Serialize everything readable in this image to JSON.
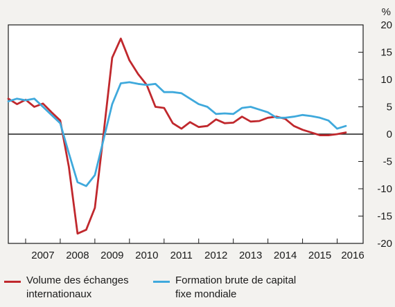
{
  "chart_data": {
    "type": "line",
    "title": "",
    "unit": "%",
    "xlabel": "",
    "ylabel": "",
    "x_range": [
      2006.5,
      2016.75
    ],
    "ylim": [
      -20,
      20
    ],
    "y_ticks": [
      -20,
      -15,
      -10,
      -5,
      0,
      5,
      10,
      15,
      20
    ],
    "y_axis_side": "right",
    "x_tick_labels": [
      "2007",
      "2008",
      "2009",
      "2010",
      "2011",
      "2012",
      "2013",
      "2014",
      "2015",
      "2016"
    ],
    "grid": false,
    "legend_position": "bottom",
    "zero_line": true,
    "series": [
      {
        "name": "Volume des échanges\ninternationaux",
        "color": "#c0282d",
        "x": [
          2006.5,
          2006.75,
          2007.0,
          2007.25,
          2007.5,
          2007.75,
          2008.0,
          2008.25,
          2008.5,
          2008.75,
          2009.0,
          2009.25,
          2009.5,
          2009.75,
          2010.0,
          2010.25,
          2010.5,
          2010.75,
          2011.0,
          2011.25,
          2011.5,
          2011.75,
          2012.0,
          2012.25,
          2012.5,
          2012.75,
          2013.0,
          2013.25,
          2013.5,
          2013.75,
          2014.0,
          2014.25,
          2014.5,
          2014.75,
          2015.0,
          2015.25,
          2015.5,
          2015.75,
          2016.0,
          2016.25
        ],
        "values": [
          6.5,
          5.5,
          6.3,
          5.0,
          5.6,
          4.0,
          2.5,
          -6.0,
          -18.2,
          -17.5,
          -13.5,
          0.0,
          14.0,
          17.5,
          13.5,
          11.0,
          9.0,
          5.0,
          4.8,
          2.0,
          1.0,
          2.2,
          1.3,
          1.5,
          2.7,
          2.0,
          2.1,
          3.2,
          2.3,
          2.4,
          3.0,
          3.2,
          2.8,
          1.5,
          0.8,
          0.3,
          -0.2,
          -0.2,
          0.0,
          0.3
        ]
      },
      {
        "name": "Formation brute de capital\nfixe mondiale",
        "color": "#3fa9dc",
        "x": [
          2006.5,
          2006.75,
          2007.0,
          2007.25,
          2007.5,
          2007.75,
          2008.0,
          2008.25,
          2008.5,
          2008.75,
          2009.0,
          2009.25,
          2009.5,
          2009.75,
          2010.0,
          2010.25,
          2010.5,
          2010.75,
          2011.0,
          2011.25,
          2011.5,
          2011.75,
          2012.0,
          2012.25,
          2012.5,
          2012.75,
          2013.0,
          2013.25,
          2013.5,
          2013.75,
          2014.0,
          2014.25,
          2014.5,
          2014.75,
          2015.0,
          2015.25,
          2015.5,
          2015.75,
          2016.0,
          2016.25
        ],
        "values": [
          6.0,
          6.5,
          6.2,
          6.5,
          5.0,
          3.5,
          2.0,
          -3.5,
          -8.8,
          -9.5,
          -7.5,
          -1.0,
          5.5,
          9.3,
          9.5,
          9.2,
          9.0,
          9.2,
          7.7,
          7.7,
          7.5,
          6.5,
          5.5,
          5.0,
          3.7,
          3.8,
          3.7,
          4.8,
          5.0,
          4.5,
          4.0,
          3.0,
          3.0,
          3.2,
          3.5,
          3.3,
          3.0,
          2.5,
          1.0,
          1.5
        ]
      }
    ]
  }
}
